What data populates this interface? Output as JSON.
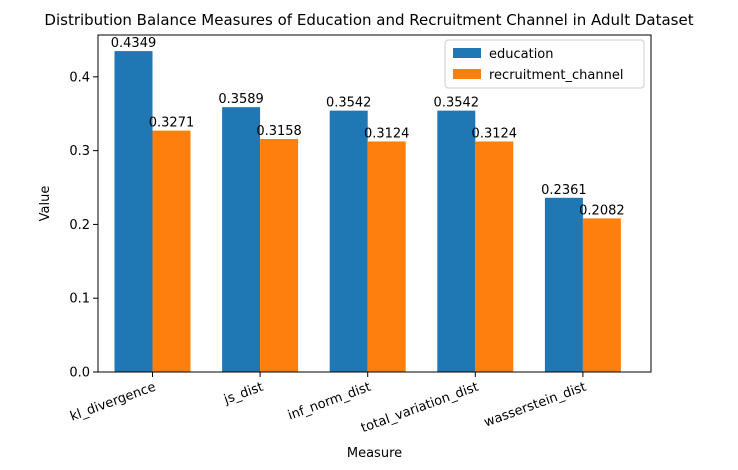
{
  "chart_data": {
    "type": "bar",
    "title": "Distribution Balance Measures of Education and Recruitment Channel in Adult Dataset",
    "xlabel": "Measure",
    "ylabel": "Value",
    "categories": [
      "kl_divergence",
      "js_dist",
      "inf_norm_dist",
      "total_variation_dist",
      "wasserstein_dist"
    ],
    "series": [
      {
        "name": "education",
        "values": [
          0.4349,
          0.3589,
          0.3542,
          0.3542,
          0.2361
        ],
        "color": "#1f77b4"
      },
      {
        "name": "recruitment_channel",
        "values": [
          0.3271,
          0.3158,
          0.3124,
          0.3124,
          0.2082
        ],
        "color": "#ff7f0e"
      }
    ],
    "value_labels": [
      [
        "0.4349",
        "0.3589",
        "0.3542",
        "0.3542",
        "0.2361"
      ],
      [
        "0.3271",
        "0.3158",
        "0.3124",
        "0.3124",
        "0.2082"
      ]
    ],
    "yticks": [
      0.0,
      0.1,
      0.2,
      0.3,
      0.4
    ],
    "ytick_labels": [
      "0.0",
      "0.1",
      "0.2",
      "0.3",
      "0.4"
    ],
    "ylim": [
      0,
      0.4567
    ],
    "grid": false,
    "legend_position": "top-right"
  }
}
